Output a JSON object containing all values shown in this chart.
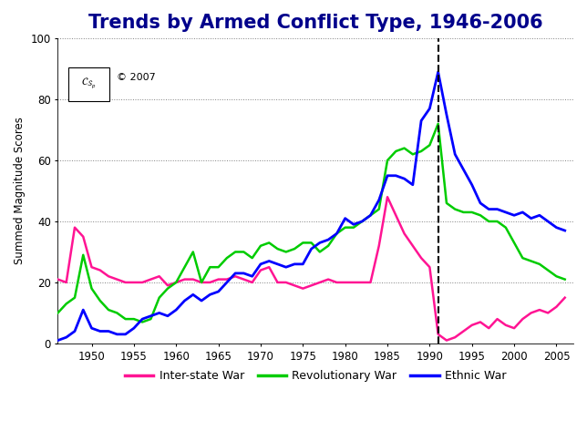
{
  "title": "Trends by Armed Conflict Type, 1946-2006",
  "ylabel": "Summed Magnitude Scores",
  "xlim": [
    1946,
    2007
  ],
  "ylim": [
    0,
    100
  ],
  "xticks": [
    1950,
    1955,
    1960,
    1965,
    1970,
    1975,
    1980,
    1985,
    1990,
    1995,
    2000,
    2005
  ],
  "yticks": [
    0,
    20,
    40,
    60,
    80,
    100
  ],
  "dashed_line_x": 1991,
  "background_color": "#ffffff",
  "title_color": "#00008B",
  "title_fontsize": 15,
  "inter_state_war": {
    "color": "#FF1493",
    "label": "Inter-state War",
    "years": [
      1946,
      1947,
      1948,
      1949,
      1950,
      1951,
      1952,
      1953,
      1954,
      1955,
      1956,
      1957,
      1958,
      1959,
      1960,
      1961,
      1962,
      1963,
      1964,
      1965,
      1966,
      1967,
      1968,
      1969,
      1970,
      1971,
      1972,
      1973,
      1974,
      1975,
      1976,
      1977,
      1978,
      1979,
      1980,
      1981,
      1982,
      1983,
      1984,
      1985,
      1986,
      1987,
      1988,
      1989,
      1990,
      1991,
      1992,
      1993,
      1994,
      1995,
      1996,
      1997,
      1998,
      1999,
      2000,
      2001,
      2002,
      2003,
      2004,
      2005,
      2006
    ],
    "values": [
      21,
      20,
      38,
      35,
      25,
      24,
      22,
      21,
      20,
      20,
      20,
      21,
      22,
      19,
      20,
      21,
      21,
      20,
      20,
      21,
      21,
      22,
      21,
      20,
      24,
      25,
      20,
      20,
      19,
      18,
      19,
      20,
      21,
      20,
      20,
      20,
      20,
      20,
      32,
      48,
      42,
      36,
      32,
      28,
      25,
      3,
      1,
      2,
      4,
      6,
      7,
      5,
      8,
      6,
      5,
      8,
      10,
      11,
      10,
      12,
      15
    ]
  },
  "revolutionary_war": {
    "color": "#00CC00",
    "label": "Revolutionary War",
    "years": [
      1946,
      1947,
      1948,
      1949,
      1950,
      1951,
      1952,
      1953,
      1954,
      1955,
      1956,
      1957,
      1958,
      1959,
      1960,
      1961,
      1962,
      1963,
      1964,
      1965,
      1966,
      1967,
      1968,
      1969,
      1970,
      1971,
      1972,
      1973,
      1974,
      1975,
      1976,
      1977,
      1978,
      1979,
      1980,
      1981,
      1982,
      1983,
      1984,
      1985,
      1986,
      1987,
      1988,
      1989,
      1990,
      1991,
      1992,
      1993,
      1994,
      1995,
      1996,
      1997,
      1998,
      1999,
      2000,
      2001,
      2002,
      2003,
      2004,
      2005,
      2006
    ],
    "values": [
      10,
      13,
      15,
      29,
      18,
      14,
      11,
      10,
      8,
      8,
      7,
      8,
      15,
      18,
      20,
      25,
      30,
      20,
      25,
      25,
      28,
      30,
      30,
      28,
      32,
      33,
      31,
      30,
      31,
      33,
      33,
      30,
      32,
      36,
      38,
      38,
      40,
      42,
      44,
      60,
      63,
      64,
      62,
      63,
      65,
      72,
      46,
      44,
      43,
      43,
      42,
      40,
      40,
      38,
      33,
      28,
      27,
      26,
      24,
      22,
      21
    ]
  },
  "ethnic_war": {
    "color": "#0000FF",
    "label": "Ethnic War",
    "years": [
      1946,
      1947,
      1948,
      1949,
      1950,
      1951,
      1952,
      1953,
      1954,
      1955,
      1956,
      1957,
      1958,
      1959,
      1960,
      1961,
      1962,
      1963,
      1964,
      1965,
      1966,
      1967,
      1968,
      1969,
      1970,
      1971,
      1972,
      1973,
      1974,
      1975,
      1976,
      1977,
      1978,
      1979,
      1980,
      1981,
      1982,
      1983,
      1984,
      1985,
      1986,
      1987,
      1988,
      1989,
      1990,
      1991,
      1992,
      1993,
      1994,
      1995,
      1996,
      1997,
      1998,
      1999,
      2000,
      2001,
      2002,
      2003,
      2004,
      2005,
      2006
    ],
    "values": [
      1,
      2,
      4,
      11,
      5,
      4,
      4,
      3,
      3,
      5,
      8,
      9,
      10,
      9,
      11,
      14,
      16,
      14,
      16,
      17,
      20,
      23,
      23,
      22,
      26,
      27,
      26,
      25,
      26,
      26,
      31,
      33,
      34,
      36,
      41,
      39,
      40,
      42,
      47,
      55,
      55,
      54,
      52,
      73,
      77,
      89,
      75,
      62,
      57,
      52,
      46,
      44,
      44,
      43,
      42,
      43,
      41,
      42,
      40,
      38,
      37
    ]
  },
  "legend_entries": [
    "Inter-state War",
    "Revolutionary War",
    "Ethnic War"
  ],
  "legend_colors": [
    "#FF1493",
    "#00CC00",
    "#0000FF"
  ]
}
